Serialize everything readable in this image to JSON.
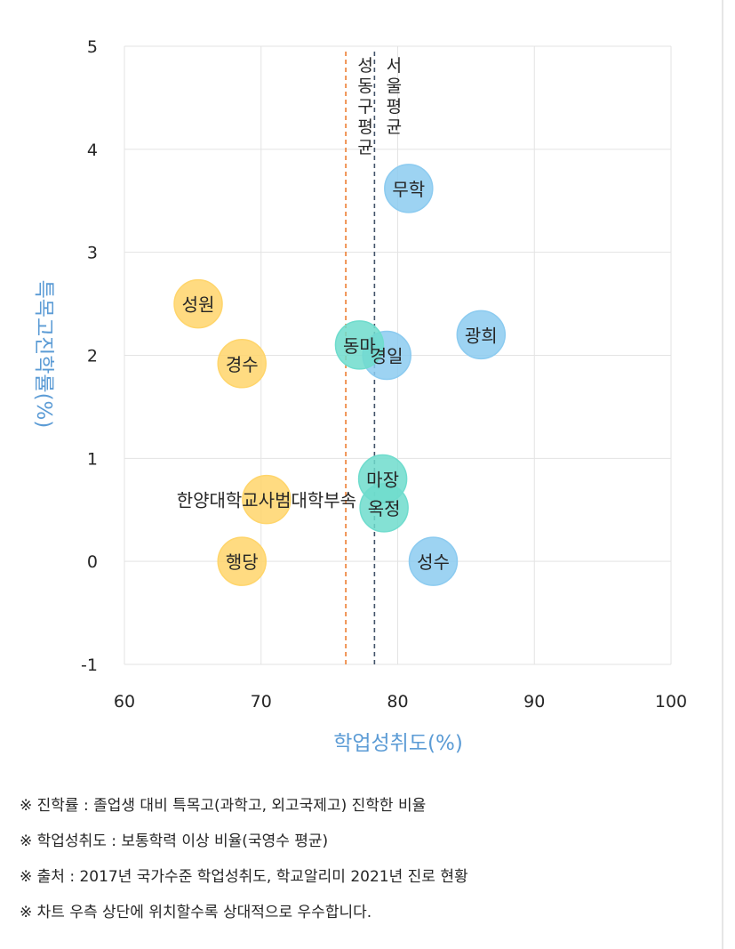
{
  "chart_data": {
    "type": "scatter",
    "xlabel": "학업성취도(%)",
    "ylabel": "특목고진학률(%)",
    "xlim": [
      60,
      100
    ],
    "ylim": [
      -1,
      5
    ],
    "x_ticks": [
      "60",
      "70",
      "80",
      "90",
      "100"
    ],
    "y_ticks": [
      "-1",
      "0",
      "1",
      "2",
      "3",
      "4",
      "5"
    ],
    "grid": true,
    "points": [
      {
        "name": "무학",
        "x": 80.8,
        "y": 3.62,
        "group": "blue"
      },
      {
        "name": "광희",
        "x": 86.1,
        "y": 2.2,
        "group": "blue"
      },
      {
        "name": "경일",
        "x": 79.2,
        "y": 2.0,
        "group": "blue"
      },
      {
        "name": "성수",
        "x": 82.6,
        "y": 0.0,
        "group": "blue"
      },
      {
        "name": "동마",
        "x": 77.2,
        "y": 2.1,
        "group": "teal"
      },
      {
        "name": "마장",
        "x": 78.9,
        "y": 0.8,
        "group": "teal"
      },
      {
        "name": "옥정",
        "x": 79.0,
        "y": 0.52,
        "group": "teal"
      },
      {
        "name": "성원",
        "x": 65.4,
        "y": 2.5,
        "group": "yellow"
      },
      {
        "name": "경수",
        "x": 68.6,
        "y": 1.92,
        "group": "yellow"
      },
      {
        "name": "한양대학교사범대학부속",
        "x": 70.4,
        "y": 0.6,
        "group": "yellow"
      },
      {
        "name": "행당",
        "x": 68.6,
        "y": 0.0,
        "group": "yellow"
      }
    ],
    "reference_lines": [
      {
        "name": "성동구평균",
        "x": 76.2,
        "color": "#ed7d31"
      },
      {
        "name": "서울평균",
        "x": 78.3,
        "color": "#44546a"
      }
    ],
    "group_colors": {
      "blue": "#8ccbf0",
      "teal": "#6fdccd",
      "yellow": "#ffd56b"
    }
  },
  "notes": [
    "※ 진학률 : 졸업생 대비 특목고(과학고, 외고국제고) 진학한 비율",
    "※ 학업성취도 : 보통학력 이상 비율(국영수 평균)",
    "※ 출처 : 2017년 국가수준 학업성취도, 학교알리미 2021년 진로 현황",
    "※ 차트 우측 상단에 위치할수록 상대적으로 우수합니다."
  ]
}
